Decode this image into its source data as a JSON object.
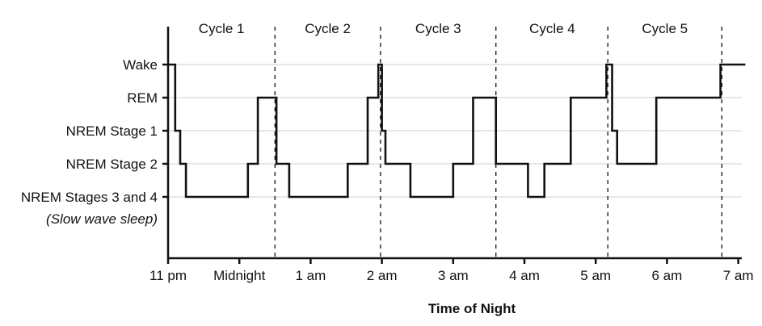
{
  "chart_data": {
    "type": "line",
    "step": true,
    "title": "",
    "xlabel": "Time of Night",
    "ylabel": "",
    "x_ticks": [
      {
        "hour": 0,
        "label": "11 pm"
      },
      {
        "hour": 1,
        "label": "Midnight"
      },
      {
        "hour": 2,
        "label": "1 am"
      },
      {
        "hour": 3,
        "label": "2 am"
      },
      {
        "hour": 4,
        "label": "3 am"
      },
      {
        "hour": 5,
        "label": "4 am"
      },
      {
        "hour": 6,
        "label": "5 am"
      },
      {
        "hour": 7,
        "label": "6 am"
      },
      {
        "hour": 8,
        "label": "7 am"
      }
    ],
    "xlim": [
      0,
      8.1
    ],
    "y_categories": [
      {
        "level": 5,
        "label": "Wake",
        "sublabel": ""
      },
      {
        "level": 4,
        "label": "REM",
        "sublabel": ""
      },
      {
        "level": 3,
        "label": "NREM Stage 1",
        "sublabel": ""
      },
      {
        "level": 2,
        "label": "NREM Stage 2",
        "sublabel": ""
      },
      {
        "level": 1,
        "label": "NREM Stages 3 and 4",
        "sublabel": "(Slow wave sleep)"
      }
    ],
    "ylim": [
      -1,
      6
    ],
    "grid": {
      "horizontal": true,
      "vertical": false
    },
    "cycle_boundaries": [
      1.5,
      2.98,
      4.6,
      6.17,
      7.77
    ],
    "cycles": [
      {
        "label": "Cycle 1",
        "center": 0.75
      },
      {
        "label": "Cycle 2",
        "center": 2.24
      },
      {
        "label": "Cycle 3",
        "center": 3.79
      },
      {
        "label": "Cycle 4",
        "center": 5.39
      },
      {
        "label": "Cycle 5",
        "center": 6.97
      }
    ],
    "series": [
      {
        "points": [
          [
            0,
            5
          ],
          [
            0.1,
            5
          ],
          [
            0.1,
            3
          ],
          [
            0.17,
            3
          ],
          [
            0.17,
            2
          ],
          [
            0.25,
            2
          ],
          [
            0.25,
            1
          ],
          [
            1.12,
            1
          ],
          [
            1.12,
            2
          ],
          [
            1.26,
            2
          ],
          [
            1.26,
            4
          ],
          [
            1.52,
            4
          ],
          [
            1.52,
            2
          ],
          [
            1.7,
            2
          ],
          [
            1.7,
            1
          ],
          [
            2.52,
            1
          ],
          [
            2.52,
            2
          ],
          [
            2.8,
            2
          ],
          [
            2.8,
            4
          ],
          [
            2.95,
            4
          ],
          [
            2.95,
            5
          ],
          [
            3.0,
            5
          ],
          [
            3.0,
            3
          ],
          [
            3.05,
            3
          ],
          [
            3.05,
            2
          ],
          [
            3.4,
            2
          ],
          [
            3.4,
            1
          ],
          [
            4.0,
            1
          ],
          [
            4.0,
            2
          ],
          [
            4.28,
            2
          ],
          [
            4.28,
            4
          ],
          [
            4.6,
            4
          ],
          [
            4.6,
            2
          ],
          [
            5.05,
            2
          ],
          [
            5.05,
            1
          ],
          [
            5.28,
            1
          ],
          [
            5.28,
            2
          ],
          [
            5.65,
            2
          ],
          [
            5.65,
            4
          ],
          [
            6.15,
            4
          ],
          [
            6.15,
            5
          ],
          [
            6.23,
            5
          ],
          [
            6.23,
            3
          ],
          [
            6.3,
            3
          ],
          [
            6.3,
            2
          ],
          [
            6.85,
            2
          ],
          [
            6.85,
            4
          ],
          [
            7.75,
            4
          ],
          [
            7.75,
            5
          ],
          [
            8.1,
            5
          ]
        ]
      }
    ]
  }
}
